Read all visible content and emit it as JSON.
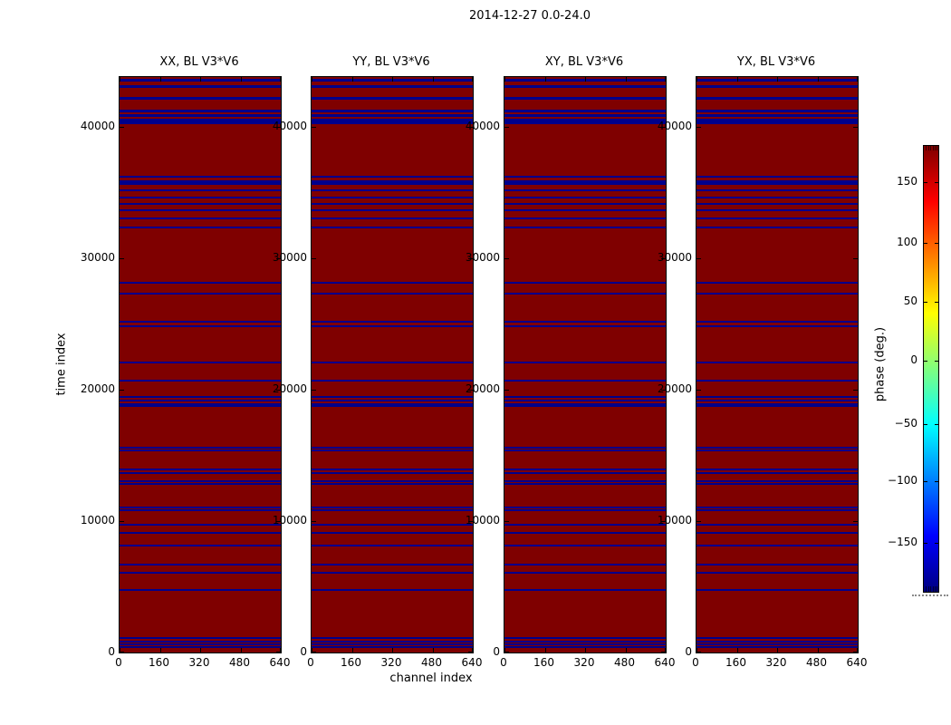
{
  "figure": {
    "title": "2014-12-27 0.0-24.0",
    "xlabel": "channel index",
    "ylabel": "time index",
    "colorbar_label": "phase (deg.)"
  },
  "panels": [
    {
      "title": "XX, BL V3*V6"
    },
    {
      "title": "YY, BL V3*V6"
    },
    {
      "title": "XY, BL V3*V6"
    },
    {
      "title": "YX, BL V3*V6"
    }
  ],
  "axis": {
    "x_tick_labels": [
      "0",
      "160",
      "320",
      "480",
      "640"
    ],
    "x_tick_values": [
      0,
      160,
      320,
      480,
      640
    ],
    "y_tick_labels": [
      "40000",
      "30000",
      "20000",
      "10000",
      "0"
    ],
    "y_tick_values": [
      40000,
      30000,
      20000,
      10000,
      0
    ],
    "x_range": [
      0,
      640
    ],
    "y_range": [
      0,
      43800
    ]
  },
  "colorbar": {
    "tick_labels": [
      "150",
      "100",
      "50",
      "0",
      "−50",
      "−100",
      "−150"
    ],
    "tick_values": [
      150,
      100,
      50,
      0,
      -50,
      -100,
      -150
    ],
    "value_range": [
      -180,
      180
    ],
    "colormap": "jet"
  },
  "colors": {
    "panel_background": "#7f0000",
    "stripe": "#00008b",
    "jet_stops": [
      "#800000",
      "#ff0000",
      "#ffff00",
      "#00ffff",
      "#0000ff",
      "#000080"
    ]
  },
  "chart_data": {
    "type": "heatmap",
    "title": "2014-12-27 0.0-24.0",
    "xlabel": "channel index",
    "ylabel": "time index",
    "colorbar_label": "phase (deg.)",
    "panels": [
      "XX, BL V3*V6",
      "YY, BL V3*V6",
      "XY, BL V3*V6",
      "YX, BL V3*V6"
    ],
    "x_range": [
      0,
      640
    ],
    "y_range": [
      0,
      43800
    ],
    "value_range_deg": [
      -180,
      180
    ],
    "background_value_deg": 180,
    "stripe_value_deg": -180,
    "stripe_time_indices": [
      43594,
      43112,
      42214,
      41246,
      40905,
      40559,
      40353,
      36214,
      35868,
      35662,
      35176,
      34628,
      34142,
      33660,
      33038,
      32351,
      28142,
      27314,
      25176,
      24830,
      22071,
      20691,
      19452,
      19141,
      18900,
      18729,
      15588,
      15348,
      13933,
      13657,
      13035,
      12864,
      11038,
      10862,
      9724,
      9106,
      8138,
      6693,
      6071,
      4761,
      1104,
      828,
      622,
      412
    ]
  }
}
